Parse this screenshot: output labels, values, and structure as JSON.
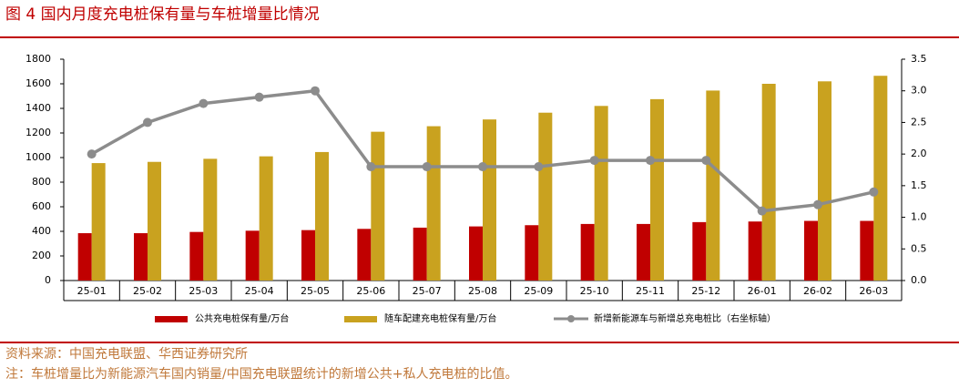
{
  "title": "图 4 国内月度充电桩保有量与车桩增量比情况",
  "chart_data": {
    "type": "bar",
    "categories": [
      "25-01",
      "25-02",
      "25-03",
      "25-04",
      "25-05",
      "25-06",
      "25-07",
      "25-08",
      "25-09",
      "25-10",
      "25-11",
      "25-12",
      "26-01",
      "26-02",
      "26-03"
    ],
    "series": [
      {
        "name": "公共充电桩保有量/万台",
        "color": "#c00000",
        "type": "bar",
        "values": [
          385,
          385,
          395,
          405,
          410,
          420,
          430,
          440,
          450,
          460,
          460,
          475,
          480,
          485,
          485
        ]
      },
      {
        "name": "随车配建充电桩保有量/万台",
        "color": "#c9a21f",
        "type": "bar",
        "values": [
          955,
          965,
          990,
          1010,
          1045,
          1210,
          1255,
          1310,
          1365,
          1420,
          1475,
          1545,
          1600,
          1620,
          1665
        ]
      },
      {
        "name": "新增新能源车与新增总充电桩比（右坐标轴）",
        "color": "#8c8c8c",
        "type": "line",
        "axis": "y2",
        "values": [
          2.0,
          2.5,
          2.8,
          2.9,
          3.0,
          1.8,
          1.8,
          1.8,
          1.8,
          1.9,
          1.9,
          1.9,
          1.1,
          1.2,
          1.4
        ]
      }
    ],
    "ylim": [
      0,
      1800
    ],
    "yticks": [
      0,
      200,
      400,
      600,
      800,
      1000,
      1200,
      1400,
      1600,
      1800
    ],
    "y2lim": [
      0,
      3.5
    ],
    "y2ticks": [
      {
        "value": 0,
        "label": "0.0"
      },
      0.5,
      {
        "value": 1,
        "label": "1.0"
      },
      1.5,
      {
        "value": 2,
        "label": "2.0"
      },
      2.5,
      {
        "value": 3,
        "label": "3.0"
      },
      3.5
    ],
    "grid": false
  },
  "source": "资料来源：中国充电联盟、华西证券研究所",
  "note": "注：车桩增量比为新能源汽车国内销量/中国充电联盟统计的新增公共+私人充电桩的比值。"
}
